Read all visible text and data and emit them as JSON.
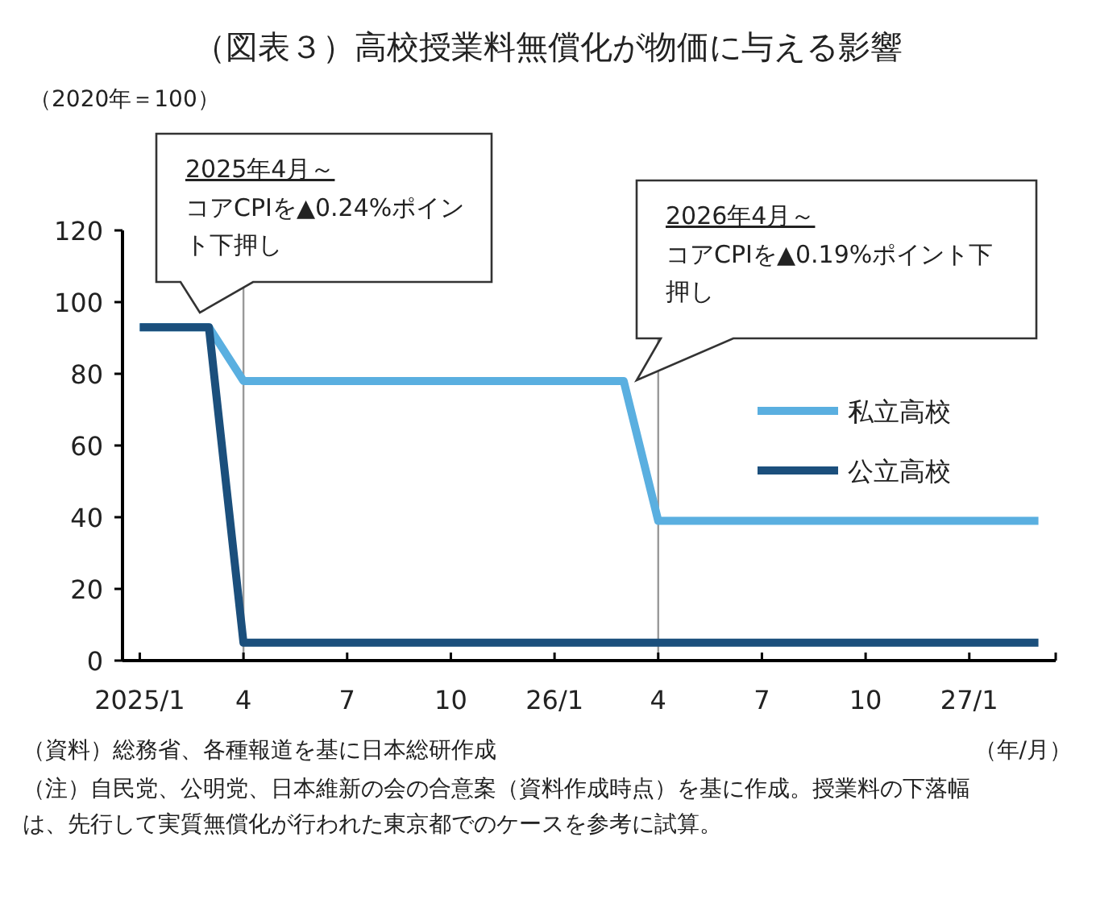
{
  "chart_data": {
    "type": "line",
    "title": "（図表３）高校授業料無償化が物価に与える影響",
    "ylabel": "（2020年＝100）",
    "xlabel": "（年/月）",
    "x": [
      "2025-01",
      "2025-02",
      "2025-03",
      "2025-04",
      "2025-05",
      "2025-06",
      "2025-07",
      "2025-08",
      "2025-09",
      "2025-10",
      "2025-11",
      "2025-12",
      "2026-01",
      "2026-02",
      "2026-03",
      "2026-04",
      "2026-05",
      "2026-06",
      "2026-07",
      "2026-08",
      "2026-09",
      "2026-10",
      "2026-11",
      "2026-12",
      "2027-01",
      "2027-02",
      "2027-03"
    ],
    "series": [
      {
        "name": "私立高校",
        "color": "#5aafe0",
        "values": [
          93,
          93,
          93,
          78,
          78,
          78,
          78,
          78,
          78,
          78,
          78,
          78,
          78,
          78,
          78,
          39,
          39,
          39,
          39,
          39,
          39,
          39,
          39,
          39,
          39,
          39,
          39
        ]
      },
      {
        "name": "公立高校",
        "color": "#1b4f7c",
        "values": [
          93,
          93,
          93,
          5,
          5,
          5,
          5,
          5,
          5,
          5,
          5,
          5,
          5,
          5,
          5,
          5,
          5,
          5,
          5,
          5,
          5,
          5,
          5,
          5,
          5,
          5,
          5
        ]
      }
    ],
    "xlim": [
      "2024-12-16",
      "2027-03-16"
    ],
    "xticks": [
      {
        "value": "2025-01",
        "label": "2025/1"
      },
      {
        "value": "2025-04",
        "label": "4"
      },
      {
        "value": "2025-07",
        "label": "7"
      },
      {
        "value": "2025-10",
        "label": "10"
      },
      {
        "value": "2026-01",
        "label": "26/1"
      },
      {
        "value": "2026-04",
        "label": "4"
      },
      {
        "value": "2026-07",
        "label": "7"
      },
      {
        "value": "2026-10",
        "label": "10"
      },
      {
        "value": "2027-01",
        "label": "27/1"
      }
    ],
    "ylim": [
      0,
      120
    ],
    "yticks": [
      0,
      20,
      40,
      60,
      80,
      100,
      120
    ],
    "ref_lines": [
      {
        "axis": "x",
        "value": "2025-04",
        "color": "#999999"
      },
      {
        "axis": "x",
        "value": "2026-04",
        "color": "#999999"
      }
    ],
    "annotations": [
      "2025年4月～",
      "コアCPIを▲0.24%ポイント下押し",
      "2026年4月～",
      "コアCPIを▲0.19%ポイント下押し",
      "（資料）総務省、各種報道を基に日本総研作成",
      "（注）自民党、公明党、日本維新の会の合意案（資料作成時点）を基に作成。授業料の下落幅は、先行して実質無償化が行われた東京都でのケースを参考に試算。"
    ],
    "legend": "right",
    "grid": false
  }
}
